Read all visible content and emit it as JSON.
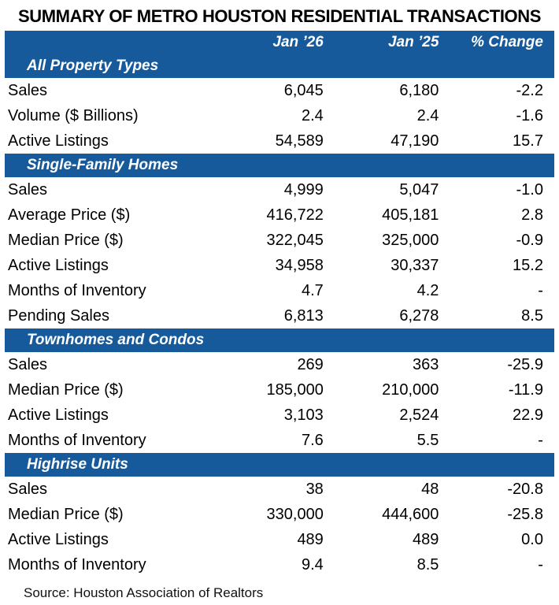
{
  "colors": {
    "header_blue": "#175A9B",
    "header_text": "#FFFFFF",
    "body_text": "#000000",
    "background": "#FFFFFF"
  },
  "chart_data": {
    "type": "table",
    "title": "SUMMARY OF METRO HOUSTON RESIDENTIAL TRANSACTIONS",
    "columns": [
      "Jan ’26",
      "Jan ’25",
      "% Change"
    ],
    "sections": [
      {
        "label": "All Property Types",
        "rows": [
          {
            "label": "Sales",
            "jan26": "6,045",
            "jan25": "6,180",
            "change": "-2.2"
          },
          {
            "label": "Volume ($ Billions)",
            "jan26": "2.4",
            "jan25": "2.4",
            "change": "-1.6"
          },
          {
            "label": "Active Listings",
            "jan26": "54,589",
            "jan25": "47,190",
            "change": "15.7"
          }
        ]
      },
      {
        "label": "Single-Family Homes",
        "rows": [
          {
            "label": "Sales",
            "jan26": "4,999",
            "jan25": "5,047",
            "change": "-1.0"
          },
          {
            "label": "Average Price ($)",
            "jan26": "416,722",
            "jan25": "405,181",
            "change": "2.8"
          },
          {
            "label": "Median Price ($)",
            "jan26": "322,045",
            "jan25": "325,000",
            "change": "-0.9"
          },
          {
            "label": "Active Listings",
            "jan26": "34,958",
            "jan25": "30,337",
            "change": "15.2"
          },
          {
            "label": "Months of Inventory",
            "jan26": "4.7",
            "jan25": "4.2",
            "change": "-"
          },
          {
            "label": "Pending Sales",
            "jan26": "6,813",
            "jan25": "6,278",
            "change": "8.5"
          }
        ]
      },
      {
        "label": "Townhomes and Condos",
        "rows": [
          {
            "label": "Sales",
            "jan26": "269",
            "jan25": "363",
            "change": "-25.9"
          },
          {
            "label": "Median Price ($)",
            "jan26": "185,000",
            "jan25": "210,000",
            "change": "-11.9"
          },
          {
            "label": "Active Listings",
            "jan26": "3,103",
            "jan25": "2,524",
            "change": "22.9"
          },
          {
            "label": "Months of Inventory",
            "jan26": "7.6",
            "jan25": "5.5",
            "change": "-"
          }
        ]
      },
      {
        "label": "Highrise Units",
        "rows": [
          {
            "label": "Sales",
            "jan26": "38",
            "jan25": "48",
            "change": "-20.8"
          },
          {
            "label": "Median Price ($)",
            "jan26": "330,000",
            "jan25": "444,600",
            "change": "-25.8"
          },
          {
            "label": "Active Listings",
            "jan26": "489",
            "jan25": "489",
            "change": "0.0"
          },
          {
            "label": "Months of Inventory",
            "jan26": "9.4",
            "jan25": "8.5",
            "change": "-"
          }
        ]
      }
    ],
    "source": "Source: Houston Association of Realtors"
  }
}
